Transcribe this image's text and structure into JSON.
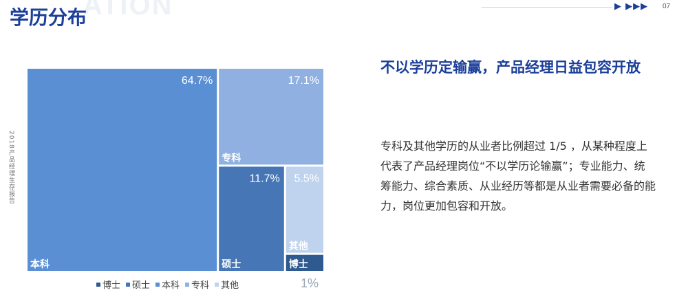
{
  "header": {
    "title": "学历分布",
    "watermark": "ATION",
    "arrows": "▶  ▶▶▶",
    "page_number": "07"
  },
  "side_caption": "2018产品经理生存报告",
  "chart_data": {
    "type": "treemap",
    "cells": [
      {
        "name": "本科",
        "value": 64.7,
        "label": "64.7%",
        "color": "#5b8fd4"
      },
      {
        "name": "专科",
        "value": 17.1,
        "label": "17.1%",
        "color": "#8fb0e0"
      },
      {
        "name": "硕士",
        "value": 11.7,
        "label": "11.7%",
        "color": "#4676b5"
      },
      {
        "name": "其他",
        "value": 5.5,
        "label": "5.5%",
        "color": "#bfd3ee"
      },
      {
        "name": "博士",
        "value": 1,
        "label": "1%",
        "color": "#2e5a8f"
      }
    ],
    "legend": [
      "博士",
      "硕士",
      "本科",
      "专科",
      "其他"
    ]
  },
  "headline": "不以学历定输赢，产品经理日益包容开放",
  "body": "专科及其他学历的从业者比例超过 1/5 ，从某种程度上代表了产品经理岗位“不以学历论输赢”；专业能力、统筹能力、综合素质、从业经历等都是从业者需要必备的能力，岗位更加包容和开放。"
}
